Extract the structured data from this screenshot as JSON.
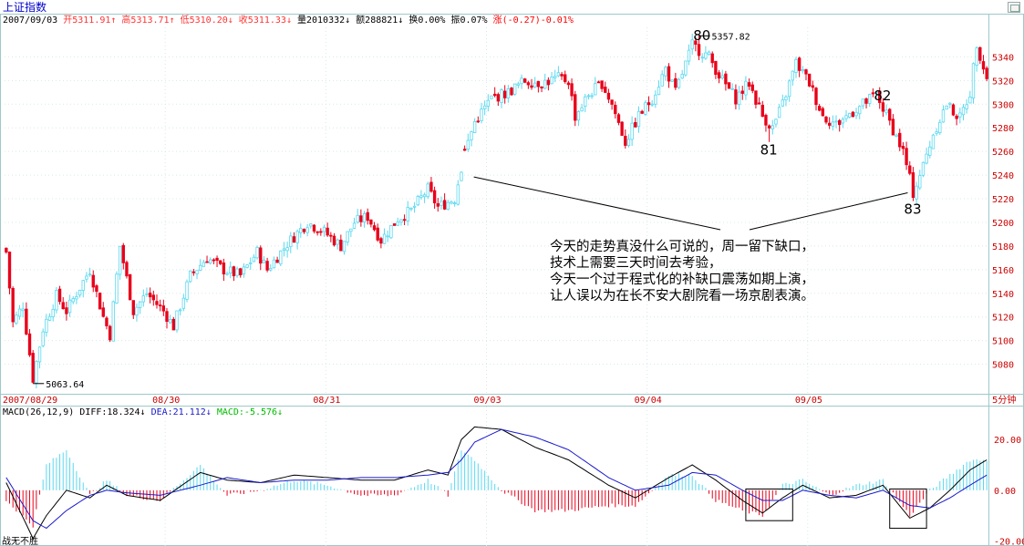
{
  "header": {
    "name": "上证指数",
    "date": "2007/09/03",
    "items": [
      {
        "text": "开5311.91↑",
        "color": "#ff3333"
      },
      {
        "text": "高5313.71↑",
        "color": "#ff3333"
      },
      {
        "text": "低5310.20↓",
        "color": "#ff3333"
      },
      {
        "text": "收5311.33↓",
        "color": "#ff3333"
      },
      {
        "text": "量2010332↓",
        "color": "#000000"
      },
      {
        "text": "额288821↓",
        "color": "#000000"
      },
      {
        "text": "换0.00%",
        "color": "#000000"
      },
      {
        "text": "振0.07%",
        "color": "#000000"
      },
      {
        "text": "涨(-0.27)-0.01%",
        "color": "#ff0000"
      }
    ]
  },
  "macd_header": {
    "label": "MACD(26,12,9)",
    "diff": "DIFF:18.324↓",
    "dea": "DEA:21.112↓",
    "macd": "MACD:-5.576↓"
  },
  "dates": [
    {
      "label": "2007/08/29",
      "bar": 0
    },
    {
      "label": "08/30",
      "bar": 48
    },
    {
      "label": "08/31",
      "bar": 96
    },
    {
      "label": "09/03",
      "bar": 144
    },
    {
      "label": "09/04",
      "bar": 192
    },
    {
      "label": "09/05",
      "bar": 240
    }
  ],
  "period": "5分钟",
  "price_ticks": [
    5080,
    5100,
    5120,
    5140,
    5160,
    5180,
    5200,
    5220,
    5240,
    5260,
    5280,
    5300,
    5320,
    5340
  ],
  "macd_ticks": [
    {
      "v": 20,
      "label": "20.00"
    },
    {
      "v": 0,
      "label": "0.00"
    },
    {
      "v": -20,
      "label": "-20.00"
    }
  ],
  "annotations": {
    "high_label": "5357.82",
    "low_label": "5063.64",
    "wave_labels": [
      {
        "text": "80",
        "bar": 208,
        "price": 5359
      },
      {
        "text": "81",
        "bar": 228,
        "price": 5262
      },
      {
        "text": "82",
        "bar": 262,
        "price": 5308
      },
      {
        "text": "83",
        "bar": 271,
        "price": 5212
      }
    ],
    "comment_lines": [
      "今天的走势真没什么可说的，周一留下缺口，",
      "技术上需要三天时间去考验，",
      "今天一个过于程式化的补缺口震荡如期上演，",
      "让人误以为在长不安大剧院看一场京剧表演。"
    ],
    "footer_text": "战无不胜"
  },
  "colors": {
    "up": "#5ad8f0",
    "down": "#e8001a",
    "grid": "#9ec9c9",
    "axis_text": "#cc0000",
    "diff": "#000000",
    "dea": "#1a1acc",
    "macd_text": "#00bb00"
  },
  "chart_data": {
    "type": "candlestick",
    "ylim": [
      5055,
      5365
    ],
    "keypoints": [
      {
        "bar": 0,
        "price": 5175
      },
      {
        "bar": 2,
        "price": 5115
      },
      {
        "bar": 5,
        "price": 5130
      },
      {
        "bar": 8,
        "price": 5068
      },
      {
        "bar": 11,
        "price": 5110
      },
      {
        "bar": 15,
        "price": 5138
      },
      {
        "bar": 18,
        "price": 5125
      },
      {
        "bar": 25,
        "price": 5160
      },
      {
        "bar": 29,
        "price": 5120
      },
      {
        "bar": 31,
        "price": 5105
      },
      {
        "bar": 34,
        "price": 5180
      },
      {
        "bar": 38,
        "price": 5125
      },
      {
        "bar": 42,
        "price": 5140
      },
      {
        "bar": 47,
        "price": 5125
      },
      {
        "bar": 50,
        "price": 5112
      },
      {
        "bar": 55,
        "price": 5155
      },
      {
        "bar": 60,
        "price": 5170
      },
      {
        "bar": 65,
        "price": 5160
      },
      {
        "bar": 70,
        "price": 5155
      },
      {
        "bar": 75,
        "price": 5175
      },
      {
        "bar": 78,
        "price": 5160
      },
      {
        "bar": 84,
        "price": 5182
      },
      {
        "bar": 90,
        "price": 5200
      },
      {
        "bar": 95,
        "price": 5192
      },
      {
        "bar": 100,
        "price": 5180
      },
      {
        "bar": 104,
        "price": 5200
      },
      {
        "bar": 108,
        "price": 5205
      },
      {
        "bar": 112,
        "price": 5185
      },
      {
        "bar": 117,
        "price": 5203
      },
      {
        "bar": 121,
        "price": 5210
      },
      {
        "bar": 126,
        "price": 5228
      },
      {
        "bar": 129,
        "price": 5213
      },
      {
        "bar": 134,
        "price": 5220
      },
      {
        "bar": 137,
        "price": 5260
      },
      {
        "bar": 140,
        "price": 5285
      },
      {
        "bar": 145,
        "price": 5305
      },
      {
        "bar": 150,
        "price": 5310
      },
      {
        "bar": 155,
        "price": 5320
      },
      {
        "bar": 160,
        "price": 5318
      },
      {
        "bar": 165,
        "price": 5322
      },
      {
        "bar": 168,
        "price": 5320
      },
      {
        "bar": 170,
        "price": 5290
      },
      {
        "bar": 174,
        "price": 5308
      },
      {
        "bar": 178,
        "price": 5318
      },
      {
        "bar": 181,
        "price": 5300
      },
      {
        "bar": 185,
        "price": 5268
      },
      {
        "bar": 189,
        "price": 5290
      },
      {
        "bar": 193,
        "price": 5305
      },
      {
        "bar": 197,
        "price": 5330
      },
      {
        "bar": 200,
        "price": 5310
      },
      {
        "bar": 205,
        "price": 5350
      },
      {
        "bar": 210,
        "price": 5340
      },
      {
        "bar": 214,
        "price": 5320
      },
      {
        "bar": 218,
        "price": 5305
      },
      {
        "bar": 222,
        "price": 5318
      },
      {
        "bar": 226,
        "price": 5290
      },
      {
        "bar": 229,
        "price": 5280
      },
      {
        "bar": 232,
        "price": 5300
      },
      {
        "bar": 236,
        "price": 5335
      },
      {
        "bar": 240,
        "price": 5318
      },
      {
        "bar": 244,
        "price": 5290
      },
      {
        "bar": 248,
        "price": 5283
      },
      {
        "bar": 252,
        "price": 5292
      },
      {
        "bar": 256,
        "price": 5300
      },
      {
        "bar": 260,
        "price": 5308
      },
      {
        "bar": 264,
        "price": 5285
      },
      {
        "bar": 268,
        "price": 5260
      },
      {
        "bar": 271,
        "price": 5225
      },
      {
        "bar": 274,
        "price": 5248
      },
      {
        "bar": 277,
        "price": 5275
      },
      {
        "bar": 281,
        "price": 5300
      },
      {
        "bar": 285,
        "price": 5288
      },
      {
        "bar": 288,
        "price": 5310
      },
      {
        "bar": 290,
        "price": 5352
      },
      {
        "bar": 293,
        "price": 5322
      }
    ],
    "events": [
      {
        "bar": 8,
        "low": 5063.64
      },
      {
        "bar": 207,
        "high": 5357.82
      },
      {
        "bar": 228,
        "low": 5268
      },
      {
        "bar": 271,
        "low": 5218
      }
    ],
    "macd_keypoints": [
      {
        "bar": 0,
        "diff": 3,
        "dea": 5
      },
      {
        "bar": 8,
        "diff": -19,
        "dea": -12
      },
      {
        "bar": 12,
        "diff": -10,
        "dea": -15
      },
      {
        "bar": 18,
        "diff": 0,
        "dea": -8
      },
      {
        "bar": 25,
        "diff": -3,
        "dea": -2
      },
      {
        "bar": 30,
        "diff": 2,
        "dea": 0
      },
      {
        "bar": 36,
        "diff": -2,
        "dea": -1
      },
      {
        "bar": 46,
        "diff": -4,
        "dea": -2
      },
      {
        "bar": 58,
        "diff": 7,
        "dea": 2
      },
      {
        "bar": 66,
        "diff": 4,
        "dea": 5
      },
      {
        "bar": 76,
        "diff": 3,
        "dea": 3
      },
      {
        "bar": 86,
        "diff": 6,
        "dea": 4
      },
      {
        "bar": 96,
        "diff": 5,
        "dea": 4
      },
      {
        "bar": 106,
        "diff": 4,
        "dea": 5
      },
      {
        "bar": 116,
        "diff": 4,
        "dea": 5
      },
      {
        "bar": 126,
        "diff": 8,
        "dea": 6
      },
      {
        "bar": 132,
        "diff": 6,
        "dea": 7
      },
      {
        "bar": 136,
        "diff": 20,
        "dea": 12
      },
      {
        "bar": 140,
        "diff": 25,
        "dea": 19
      },
      {
        "bar": 148,
        "diff": 24,
        "dea": 24
      },
      {
        "bar": 158,
        "diff": 17,
        "dea": 21
      },
      {
        "bar": 168,
        "diff": 12,
        "dea": 16
      },
      {
        "bar": 180,
        "diff": 2,
        "dea": 5
      },
      {
        "bar": 188,
        "diff": -3,
        "dea": 0
      },
      {
        "bar": 198,
        "diff": 5,
        "dea": 2
      },
      {
        "bar": 205,
        "diff": 10,
        "dea": 7
      },
      {
        "bar": 212,
        "diff": 4,
        "dea": 6
      },
      {
        "bar": 220,
        "diff": -4,
        "dea": 0
      },
      {
        "bar": 226,
        "diff": -9,
        "dea": -4
      },
      {
        "bar": 232,
        "diff": -3,
        "dea": -4
      },
      {
        "bar": 238,
        "diff": 2,
        "dea": 0
      },
      {
        "bar": 246,
        "diff": -3,
        "dea": -2
      },
      {
        "bar": 254,
        "diff": -2,
        "dea": -3
      },
      {
        "bar": 262,
        "diff": 2,
        "dea": 0
      },
      {
        "bar": 270,
        "diff": -11,
        "dea": -6
      },
      {
        "bar": 276,
        "diff": -7,
        "dea": -7
      },
      {
        "bar": 282,
        "diff": 0,
        "dea": -3
      },
      {
        "bar": 288,
        "diff": 8,
        "dea": 2
      },
      {
        "bar": 293,
        "diff": 12,
        "dea": 6
      }
    ],
    "macd_ylim": [
      -22,
      28
    ]
  }
}
